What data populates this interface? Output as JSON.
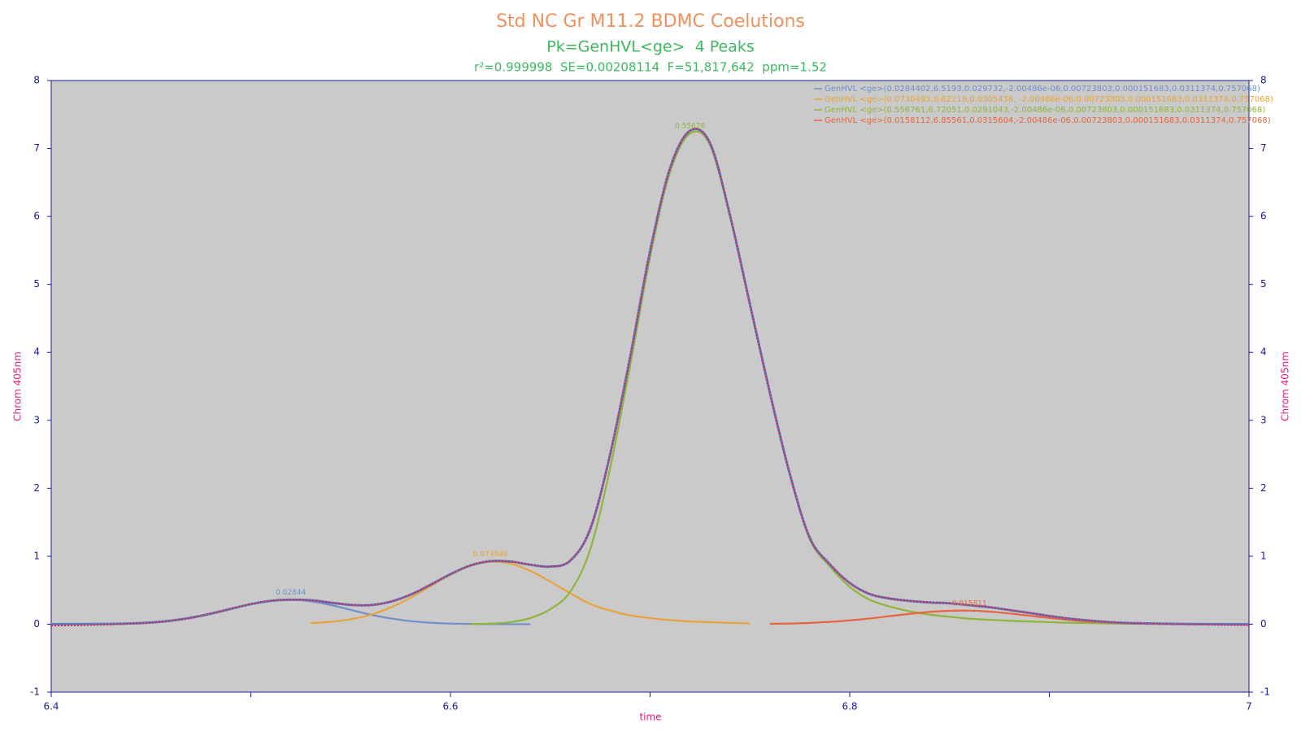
{
  "chart_data": {
    "type": "line",
    "title": "Std NC Gr M11.2 BDMC Coelutions",
    "subtitle": "Pk=GenHVL<ge>  4 Peaks",
    "stats": "r²=0.999998  SE=0.00208114  F=51,817,642  ppm=1.52",
    "xlabel": "time",
    "ylabel": "Chrom 405nm",
    "y2label": "Chrom 405nm",
    "xlim": [
      6.4,
      7
    ],
    "xticks": [
      6.4,
      6.6,
      6.8,
      7
    ],
    "xminorticks": [
      6.5,
      6.7,
      6.9
    ],
    "ylim": [
      -1,
      8
    ],
    "yticks": [
      -1,
      0,
      1,
      2,
      3,
      4,
      5,
      6,
      7,
      8
    ],
    "y2lim": [
      -1,
      8
    ],
    "y2ticks": [
      -1,
      0,
      1,
      2,
      3,
      4,
      5,
      6,
      7,
      8
    ],
    "legend": "upper right",
    "x": [
      6.4,
      6.41,
      6.42,
      6.43,
      6.44,
      6.45,
      6.46,
      6.47,
      6.48,
      6.49,
      6.5,
      6.51,
      6.52,
      6.53,
      6.54,
      6.55,
      6.56,
      6.57,
      6.58,
      6.59,
      6.6,
      6.61,
      6.62,
      6.63,
      6.64,
      6.65,
      6.66,
      6.67,
      6.68,
      6.69,
      6.7,
      6.71,
      6.72,
      6.73,
      6.74,
      6.75,
      6.76,
      6.77,
      6.78,
      6.79,
      6.8,
      6.81,
      6.82,
      6.83,
      6.84,
      6.85,
      6.86,
      6.87,
      6.88,
      6.89,
      6.9,
      6.91,
      6.92,
      6.93,
      6.94,
      6.95,
      6.96,
      6.97,
      6.98,
      6.99,
      7
    ],
    "series": [
      {
        "name": "GenHVL <ge>(0.0284402,6.5193,0.029732,-2.00486e-06,0.00723803,0.000151683,0.0311374,0.757068)",
        "color": "#6f8fc8",
        "peak_label": "0.02844",
        "values": [
          0,
          0.0005,
          0.002,
          0.004,
          0.011,
          0.025,
          0.052,
          0.095,
          0.155,
          0.226,
          0.295,
          0.344,
          0.36,
          0.337,
          0.282,
          0.211,
          0.141,
          0.085,
          0.045,
          0.022,
          0.009,
          0.004,
          0.001,
          0,
          0,
          null,
          null,
          null,
          null,
          null,
          null,
          null,
          null,
          null,
          null,
          null,
          null,
          null,
          null,
          null,
          null,
          null,
          null,
          null,
          null,
          null,
          null,
          null,
          null,
          null,
          null,
          null,
          null,
          null,
          null,
          null,
          null,
          null,
          null,
          null,
          null
        ]
      },
      {
        "name": "GenHVL <ge>(0.0730493,6.62219,0.0305436, -2.00486e-06,0.00723803,0.000151683,0.0311374,0.757068)",
        "color": "#e8a33a",
        "peak_label": "0.073049",
        "values": [
          null,
          null,
          null,
          null,
          null,
          null,
          null,
          null,
          null,
          null,
          null,
          null,
          null,
          0.015,
          0.035,
          0.073,
          0.14,
          0.246,
          0.389,
          0.558,
          0.727,
          0.858,
          0.918,
          0.892,
          0.785,
          0.627,
          0.455,
          0.299,
          0.2,
          0.13,
          0.09,
          0.06,
          0.04,
          0.03,
          0.02,
          0.01,
          null,
          null,
          null,
          null,
          null,
          null,
          null,
          null,
          null,
          null,
          null,
          null,
          null,
          null,
          null,
          null,
          null,
          null,
          null,
          null,
          null,
          null,
          null,
          null,
          null
        ]
      },
      {
        "name": "GenHVL <ge>(0.556761,6.72051,0.0291043,-2.00486e-06,0.00723803,0.000151683,0.0311374,0.757068)",
        "color": "#8fb53a",
        "peak_label": "0.55676",
        "values": [
          null,
          null,
          null,
          null,
          null,
          null,
          null,
          null,
          null,
          null,
          null,
          null,
          null,
          null,
          null,
          null,
          null,
          null,
          null,
          null,
          null,
          0.002,
          0.008,
          0.03,
          0.09,
          0.22,
          0.48,
          1.1,
          2.3,
          3.8,
          5.4,
          6.65,
          7.22,
          7.05,
          6.0,
          4.7,
          3.4,
          2.2,
          1.25,
          0.85,
          0.55,
          0.36,
          0.26,
          0.19,
          0.14,
          0.11,
          0.08,
          0.065,
          0.05,
          0.04,
          0.03,
          0.02,
          0.015,
          0.01,
          0.007,
          0.005,
          0.003,
          0.002,
          null,
          null,
          null
        ]
      },
      {
        "name": "GenHVL <ge>(0.0158112,6.85561,0.0315604,-2.00486e-06,0.00723803,0.000151683,0.0311374,0.757068)",
        "color": "#e8643e",
        "peak_label": "0.015811",
        "values": [
          null,
          null,
          null,
          null,
          null,
          null,
          null,
          null,
          null,
          null,
          null,
          null,
          null,
          null,
          null,
          null,
          null,
          null,
          null,
          null,
          null,
          null,
          null,
          null,
          null,
          null,
          null,
          null,
          null,
          null,
          null,
          null,
          null,
          null,
          null,
          null,
          0.005,
          0.01,
          0.019,
          0.034,
          0.056,
          0.084,
          0.118,
          0.152,
          0.18,
          0.197,
          0.199,
          0.185,
          0.158,
          0.125,
          0.091,
          0.061,
          0.038,
          0.021,
          0.011,
          0.006,
          0.003,
          0.001,
          0,
          0,
          0
        ]
      }
    ],
    "data": {
      "color": "#e0204a",
      "values": [
        -0.02,
        -0.018,
        -0.012,
        -0.004,
        0.008,
        0.024,
        0.05,
        0.094,
        0.156,
        0.228,
        0.297,
        0.345,
        0.361,
        0.353,
        0.318,
        0.285,
        0.282,
        0.332,
        0.435,
        0.581,
        0.737,
        0.865,
        0.928,
        0.923,
        0.876,
        0.848,
        0.936,
        1.4,
        2.5,
        3.93,
        5.49,
        6.71,
        7.26,
        7.08,
        6.02,
        4.71,
        3.405,
        2.21,
        1.27,
        0.885,
        0.607,
        0.445,
        0.379,
        0.343,
        0.321,
        0.308,
        0.28,
        0.251,
        0.209,
        0.166,
        0.122,
        0.082,
        0.054,
        0.031,
        0.017,
        0.009,
        0.003,
        -0.003,
        -0.008,
        -0.012,
        -0.015
      ]
    },
    "fit": {
      "color": "#5a7fc1",
      "values": [
        0,
        0.001,
        0.002,
        0.004,
        0.011,
        0.025,
        0.052,
        0.095,
        0.155,
        0.226,
        0.295,
        0.344,
        0.36,
        0.352,
        0.317,
        0.284,
        0.281,
        0.331,
        0.434,
        0.58,
        0.736,
        0.864,
        0.927,
        0.922,
        0.875,
        0.847,
        0.935,
        1.399,
        2.5,
        3.93,
        5.49,
        6.71,
        7.26,
        7.08,
        6.02,
        4.71,
        3.405,
        2.21,
        1.269,
        0.884,
        0.606,
        0.444,
        0.378,
        0.342,
        0.32,
        0.307,
        0.279,
        0.25,
        0.208,
        0.165,
        0.121,
        0.081,
        0.053,
        0.031,
        0.018,
        0.011,
        0.006,
        0.003,
        0.001,
        0,
        0
      ]
    }
  }
}
